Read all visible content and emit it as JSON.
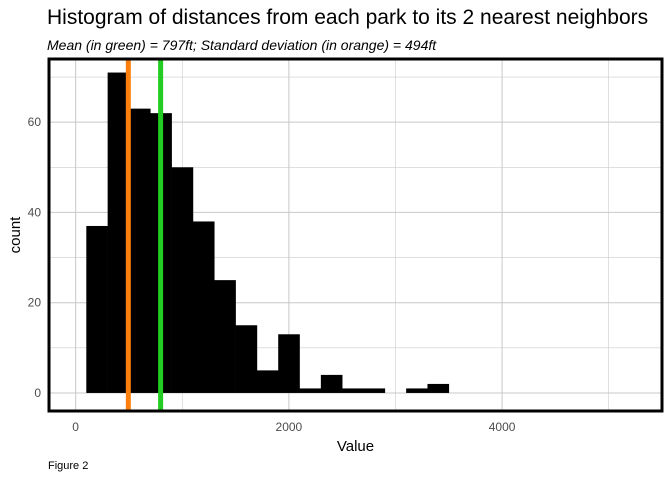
{
  "chart_data": {
    "type": "bar",
    "title": "Histogram of distances from each park to its 2 nearest neighbors",
    "subtitle": "Mean (in green) = 797ft; Standard deviation (in orange) = 494ft",
    "xlabel": "Value",
    "ylabel": "count",
    "caption": "Figure 2",
    "xlim": [
      -250,
      5500
    ],
    "ylim": [
      -4,
      74
    ],
    "x_ticks": [
      0,
      2000,
      4000
    ],
    "y_ticks": [
      0,
      20,
      40,
      60
    ],
    "grid": true,
    "bin_width": 200,
    "bins": [
      {
        "start": 100,
        "end": 300,
        "count": 37
      },
      {
        "start": 300,
        "end": 500,
        "count": 71
      },
      {
        "start": 500,
        "end": 700,
        "count": 63
      },
      {
        "start": 700,
        "end": 900,
        "count": 62
      },
      {
        "start": 900,
        "end": 1100,
        "count": 50
      },
      {
        "start": 1100,
        "end": 1300,
        "count": 38
      },
      {
        "start": 1300,
        "end": 1500,
        "count": 25
      },
      {
        "start": 1500,
        "end": 1700,
        "count": 15
      },
      {
        "start": 1700,
        "end": 1900,
        "count": 5
      },
      {
        "start": 1900,
        "end": 2100,
        "count": 13
      },
      {
        "start": 2100,
        "end": 2300,
        "count": 1
      },
      {
        "start": 2300,
        "end": 2500,
        "count": 4
      },
      {
        "start": 2500,
        "end": 2700,
        "count": 1
      },
      {
        "start": 2700,
        "end": 2900,
        "count": 1
      },
      {
        "start": 2900,
        "end": 3100,
        "count": 0
      },
      {
        "start": 3100,
        "end": 3300,
        "count": 1
      },
      {
        "start": 3300,
        "end": 3500,
        "count": 2
      }
    ],
    "vlines": [
      {
        "label": "Standard deviation",
        "x": 494,
        "color": "#ff7f0e"
      },
      {
        "label": "Mean",
        "x": 797,
        "color": "#22cc22"
      }
    ],
    "bar_color": "#000000"
  }
}
